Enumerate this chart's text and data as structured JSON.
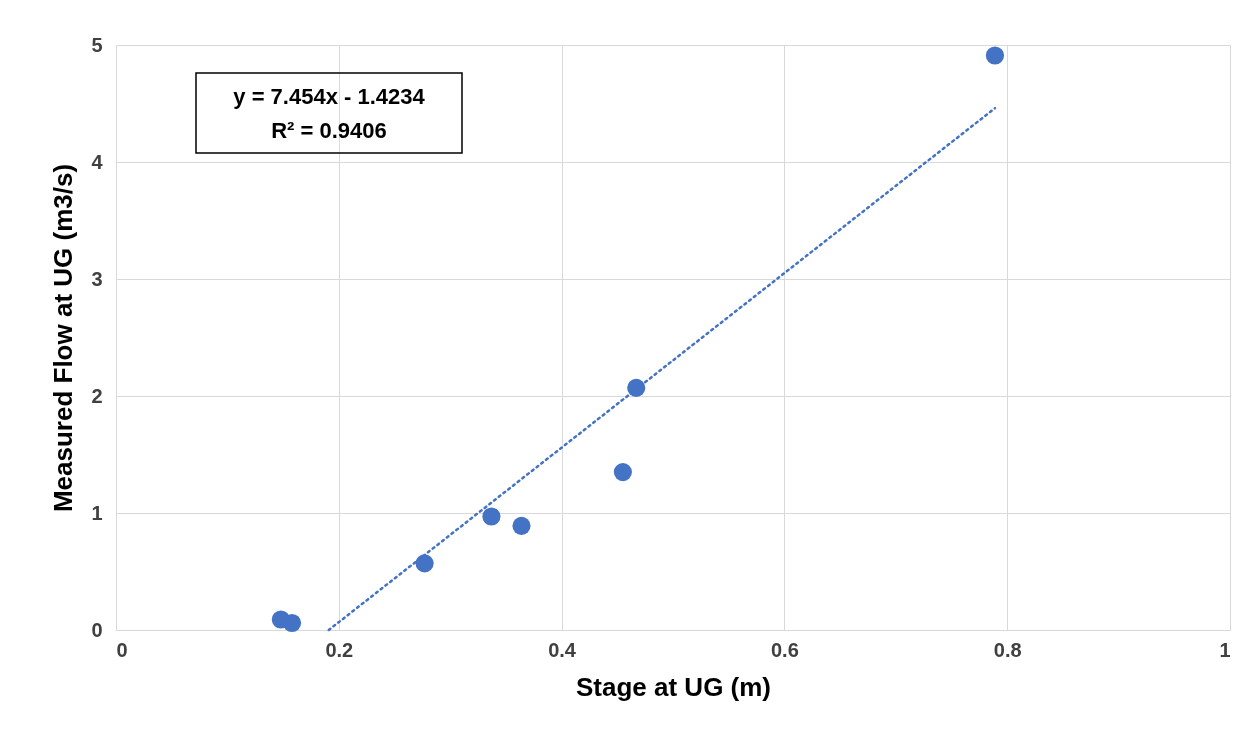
{
  "chart_data": {
    "type": "scatter",
    "xlabel": "Stage at UG (m)",
    "ylabel": "Measured Flow at UG (m3/s)",
    "xlim": [
      0,
      1
    ],
    "xticks": [
      0,
      0.2,
      0.4,
      0.6,
      0.8,
      1
    ],
    "ylim": [
      0,
      5
    ],
    "yticks": [
      0,
      1,
      2,
      3,
      4,
      5
    ],
    "grid": true,
    "series": [
      {
        "marker": "circle",
        "color": "#4472c4",
        "x": [
          0.148,
          0.158,
          0.277,
          0.337,
          0.364,
          0.455,
          0.467,
          0.789
        ],
        "values": [
          0.09,
          0.06,
          0.57,
          0.97,
          0.89,
          1.35,
          2.07,
          4.91
        ]
      },
      {
        "type": "line",
        "marker": "none",
        "color": "#4472c4",
        "line_style": "dotted",
        "x": [
          0.191,
          0.789
        ],
        "values": [
          0.0,
          4.46
        ]
      }
    ],
    "annotations": [
      "y = 7.454x - 1.4234",
      "R² = 0.9406"
    ]
  }
}
